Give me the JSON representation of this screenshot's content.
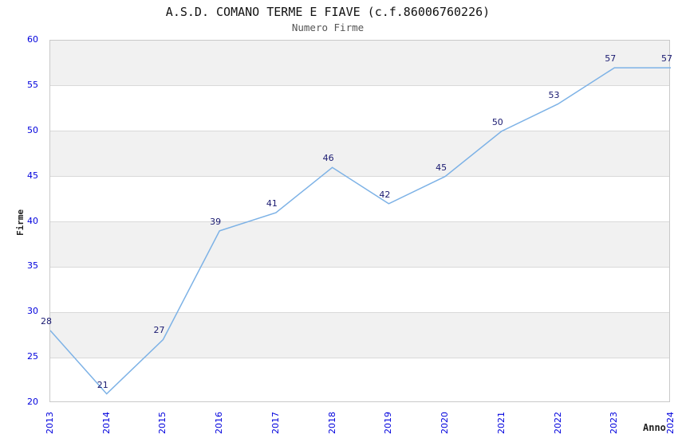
{
  "chart_data": {
    "type": "line",
    "title": "A.S.D. COMANO TERME E FIAVE (c.f.86006760226)",
    "subtitle": "Numero Firme",
    "xlabel": "Anno",
    "ylabel": "Firme",
    "x": [
      2013,
      2014,
      2015,
      2016,
      2017,
      2018,
      2019,
      2020,
      2021,
      2022,
      2023,
      2024
    ],
    "series": [
      {
        "name": "Firme",
        "values": [
          28,
          21,
          27,
          39,
          41,
          46,
          42,
          45,
          50,
          53,
          57,
          57
        ]
      }
    ],
    "ylim": [
      20,
      60
    ],
    "ytick_step": 5,
    "yticks": [
      20,
      25,
      30,
      35,
      40,
      45,
      50,
      55,
      60
    ],
    "grid": "horizontal",
    "bands": "alternating-horizontal",
    "legend": "none",
    "data_labels": "above-points",
    "colors": {
      "line": "#7db2e6",
      "tick_label": "#0000dd",
      "data_label": "#191970",
      "band": "#f1f1f1",
      "grid_line": "#d9d9d9",
      "plot_border": "#c9c9c9",
      "title": "#111111",
      "subtitle": "#555555",
      "axis_title": "#222222"
    }
  }
}
